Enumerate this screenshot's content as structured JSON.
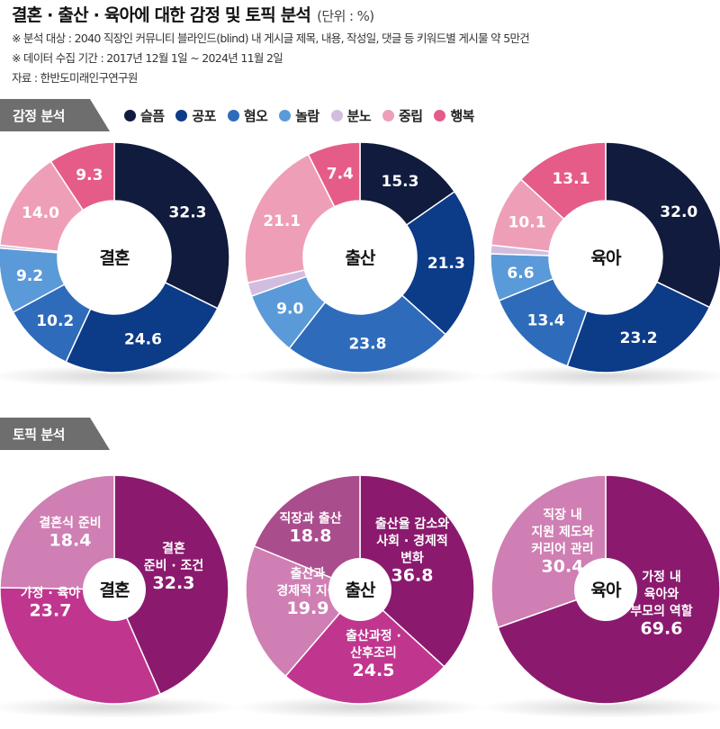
{
  "header": {
    "title": "결혼 · 출산 · 육아에 대한 감정 및 토픽 분석",
    "unit": "(단위 : %)",
    "note1": "※ 분석 대상 : 2040 직장인 커뮤니티 블라인드(blind) 내 게시글 제목, 내용, 작성일, 댓글 등 키워드별 게시물 약 5만건",
    "note2": "※ 데이터 수집 기간 : 2017년 12월 1일 ~ 2024년 11월 2일",
    "source": "자료 : 한반도미래인구연구원"
  },
  "sections": {
    "emotion": "감정 분석",
    "topic": "토픽 분석"
  },
  "legend": [
    {
      "label": "슬픔",
      "color": "#101b3d"
    },
    {
      "label": "공포",
      "color": "#0c3b88"
    },
    {
      "label": "혐오",
      "color": "#2f6bbb"
    },
    {
      "label": "놀람",
      "color": "#5a9ad8"
    },
    {
      "label": "분노",
      "color": "#d2bde0"
    },
    {
      "label": "중립",
      "color": "#ee9fb7"
    },
    {
      "label": "행복",
      "color": "#e55c89"
    }
  ],
  "chart_data": [
    {
      "type": "pie",
      "subtype": "donut",
      "group": "감정 분석",
      "title": "결혼",
      "categories": [
        "슬픔",
        "공포",
        "혐오",
        "놀람",
        "분노",
        "중립",
        "행복"
      ],
      "values": [
        32.3,
        24.6,
        10.2,
        9.2,
        0.4,
        14.0,
        9.3
      ],
      "labels": [
        "32.3",
        "24.6",
        "10.2",
        "9.2",
        "",
        "14.0",
        "9.3"
      ],
      "colors": [
        "#101b3d",
        "#0c3b88",
        "#2f6bbb",
        "#5a9ad8",
        "#d2bde0",
        "#ee9fb7",
        "#e55c89"
      ]
    },
    {
      "type": "pie",
      "subtype": "donut",
      "group": "감정 분석",
      "title": "출산",
      "categories": [
        "슬픔",
        "공포",
        "혐오",
        "놀람",
        "분노",
        "중립",
        "행복"
      ],
      "values": [
        15.3,
        21.3,
        23.8,
        9.0,
        1.9,
        21.1,
        7.4
      ],
      "labels": [
        "15.3",
        "21.3",
        "23.8",
        "9.0",
        "",
        "21.1",
        "7.4"
      ],
      "colors": [
        "#101b3d",
        "#0c3b88",
        "#2f6bbb",
        "#5a9ad8",
        "#d2bde0",
        "#ee9fb7",
        "#e55c89"
      ]
    },
    {
      "type": "pie",
      "subtype": "donut",
      "group": "감정 분석",
      "title": "육아",
      "categories": [
        "슬픔",
        "공포",
        "혐오",
        "놀람",
        "분노",
        "중립",
        "행복"
      ],
      "values": [
        32.0,
        23.2,
        13.4,
        6.6,
        1.2,
        10.1,
        13.1
      ],
      "labels": [
        "32.0",
        "23.2",
        "13.4",
        "6.6",
        "",
        "10.1",
        "13.1"
      ],
      "colors": [
        "#101b3d",
        "#0c3b88",
        "#2f6bbb",
        "#5a9ad8",
        "#d2bde0",
        "#ee9fb7",
        "#e55c89"
      ]
    },
    {
      "type": "pie",
      "group": "토픽 분석",
      "title": "결혼",
      "categories": [
        "결혼 준비 · 조건",
        "가정 · 육아",
        "결혼식 준비"
      ],
      "values": [
        32.3,
        23.7,
        18.4
      ],
      "colors": [
        "#8b1a6e",
        "#c0368f",
        "#cf7fb3"
      ],
      "labels": [
        [
          "결혼",
          "준비 · 조건",
          "32.3"
        ],
        [
          "가정 · 육아",
          "23.7"
        ],
        [
          "결혼식 준비",
          "18.4"
        ]
      ]
    },
    {
      "type": "pie",
      "group": "토픽 분석",
      "title": "출산",
      "categories": [
        "출산율 감소와 사회 · 경제적 변화",
        "출산과정 · 산후조리",
        "출산과 경제적 지원",
        "직장과 출산"
      ],
      "values": [
        36.8,
        24.5,
        19.9,
        18.8
      ],
      "colors": [
        "#8b1a6e",
        "#c0368f",
        "#cf7fb3",
        "#aa4d8d"
      ],
      "labels": [
        [
          "출산율 감소와",
          "사회 · 경제적",
          "변화",
          "36.8"
        ],
        [
          "출산과정 ·",
          "산후조리",
          "24.5"
        ],
        [
          "출산과",
          "경제적 지원",
          "19.9"
        ],
        [
          "직장과 출산",
          "18.8"
        ]
      ]
    },
    {
      "type": "pie",
      "group": "토픽 분석",
      "title": "육아",
      "categories": [
        "가정 내 육아와 부모의 역할",
        "직장 내 지원 제도와 커리어 관리"
      ],
      "values": [
        69.6,
        30.4
      ],
      "colors": [
        "#8b1a6e",
        "#cf7fb3"
      ],
      "labels": [
        [
          "가정 내",
          "육아와",
          "부모의 역할",
          "69.6"
        ],
        [
          "직장 내",
          "지원 제도와",
          "커리어 관리",
          "30.4"
        ]
      ]
    }
  ]
}
